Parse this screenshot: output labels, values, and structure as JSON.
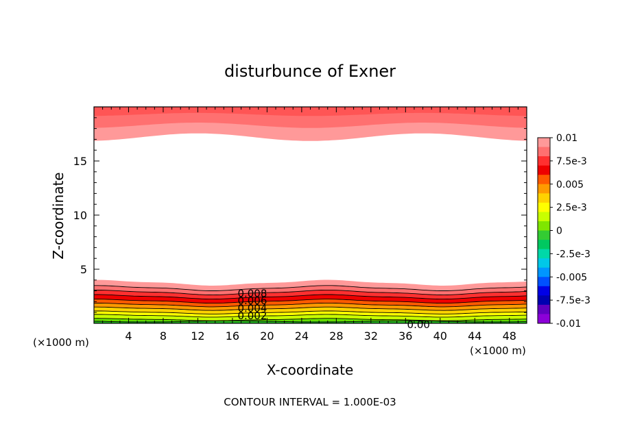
{
  "chart_data": {
    "type": "contour",
    "title": "disturbunce of Exner",
    "xlabel": "X-coordinate",
    "ylabel": "Z-coordinate",
    "x_unit": "(×1000 m)",
    "x_unit_right": "(×1000 m)",
    "xlim": [
      0,
      50
    ],
    "ylim": [
      0,
      20
    ],
    "x_ticks": [
      4,
      8,
      12,
      16,
      20,
      24,
      28,
      32,
      36,
      40,
      44,
      48
    ],
    "y_ticks": [
      5,
      10,
      15
    ],
    "contour_interval_text": "CONTOUR INTERVAL = 1.000E-03",
    "contour_labels": [
      "0.008",
      "0.006",
      "0.004",
      "0.002",
      "0.00"
    ],
    "colorbar": {
      "labels": [
        "0.01",
        "7.5e-3",
        "0.005",
        "2.5e-3",
        "0",
        "-2.5e-3",
        "-0.005",
        "-7.5e-3",
        "-0.01"
      ],
      "colors": [
        "#ff9999",
        "#ff7070",
        "#ff3030",
        "#ee0000",
        "#ff5a00",
        "#ff9a00",
        "#ffd200",
        "#ffff00",
        "#c8ff00",
        "#7fe600",
        "#33cc33",
        "#00c860",
        "#00d8a8",
        "#00c8e8",
        "#0096ff",
        "#0050ff",
        "#0000e6",
        "#0000b0",
        "#6000c0",
        "#8c00d8"
      ]
    },
    "bottom_layer": {
      "levels": [
        0.01,
        0.009,
        0.008,
        0.007,
        0.006,
        0.005,
        0.004,
        0.003,
        0.002,
        0.001
      ],
      "colors": [
        "#ff9999",
        "#ff7070",
        "#ff3030",
        "#ee0000",
        "#ff5a00",
        "#ff9a00",
        "#ffd200",
        "#ffff00",
        "#c8ff00",
        "#66dd00"
      ],
      "base_heights_km": [
        3.75,
        3.25,
        2.85,
        2.45,
        2.05,
        1.7,
        1.35,
        1.0,
        0.7,
        0.35
      ]
    },
    "top_layer": {
      "colors": [
        "#ff9999",
        "#ff7070",
        "#ff5555"
      ],
      "base_heights_km": [
        17.2,
        18.3,
        19.3
      ]
    }
  }
}
